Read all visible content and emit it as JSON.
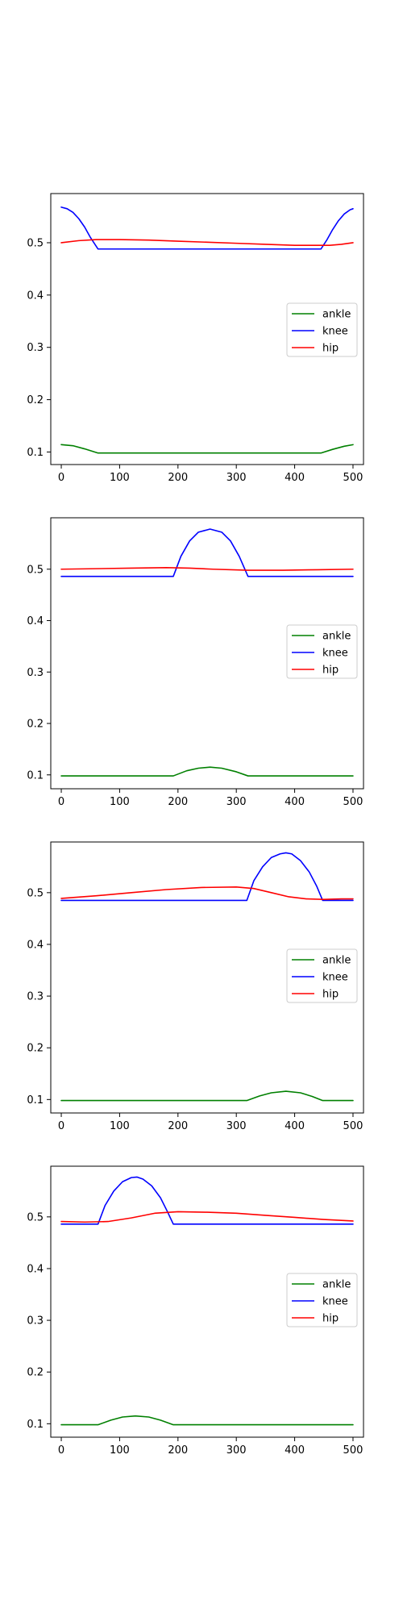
{
  "chart_data": [
    {
      "type": "line",
      "xlim": [
        -18,
        518
      ],
      "ylim": [
        0.076,
        0.594
      ],
      "xticks": [
        0,
        100,
        200,
        300,
        400,
        500
      ],
      "yticks": [
        0.1,
        0.2,
        0.3,
        0.4,
        0.5
      ],
      "grid": false,
      "legend_position": "center-right",
      "series": [
        {
          "name": "ankle",
          "color": "#008000",
          "x": [
            0,
            20,
            40,
            63,
            100,
            200,
            300,
            400,
            445,
            465,
            485,
            500
          ],
          "y": [
            0.114,
            0.112,
            0.106,
            0.098,
            0.098,
            0.098,
            0.098,
            0.098,
            0.098,
            0.105,
            0.111,
            0.114
          ]
        },
        {
          "name": "knee",
          "color": "#0000ff",
          "x": [
            0,
            10,
            20,
            30,
            40,
            50,
            63,
            100,
            200,
            300,
            400,
            445,
            455,
            465,
            475,
            485,
            495,
            500
          ],
          "y": [
            0.568,
            0.565,
            0.558,
            0.546,
            0.53,
            0.51,
            0.488,
            0.488,
            0.488,
            0.488,
            0.488,
            0.488,
            0.505,
            0.525,
            0.542,
            0.555,
            0.563,
            0.565
          ]
        },
        {
          "name": "hip",
          "color": "#ff0000",
          "x": [
            0,
            30,
            60,
            100,
            150,
            200,
            250,
            300,
            350,
            400,
            430,
            460,
            480,
            500
          ],
          "y": [
            0.5,
            0.504,
            0.506,
            0.506,
            0.505,
            0.503,
            0.501,
            0.499,
            0.497,
            0.495,
            0.495,
            0.495,
            0.497,
            0.5
          ]
        }
      ]
    },
    {
      "type": "line",
      "xlim": [
        -18,
        518
      ],
      "ylim": [
        0.073,
        0.6
      ],
      "xticks": [
        0,
        100,
        200,
        300,
        400,
        500
      ],
      "yticks": [
        0.1,
        0.2,
        0.3,
        0.4,
        0.5
      ],
      "grid": false,
      "legend_position": "center-right",
      "series": [
        {
          "name": "ankle",
          "color": "#008000",
          "x": [
            0,
            100,
            192,
            215,
            235,
            255,
            275,
            300,
            320,
            400,
            500
          ],
          "y": [
            0.098,
            0.098,
            0.098,
            0.108,
            0.113,
            0.115,
            0.113,
            0.106,
            0.098,
            0.098,
            0.098
          ]
        },
        {
          "name": "knee",
          "color": "#0000ff",
          "x": [
            0,
            100,
            192,
            205,
            220,
            235,
            255,
            275,
            290,
            305,
            320,
            400,
            500
          ],
          "y": [
            0.486,
            0.486,
            0.486,
            0.525,
            0.555,
            0.572,
            0.578,
            0.572,
            0.555,
            0.525,
            0.486,
            0.486,
            0.486
          ]
        },
        {
          "name": "hip",
          "color": "#ff0000",
          "x": [
            0,
            60,
            120,
            180,
            220,
            260,
            320,
            380,
            440,
            500
          ],
          "y": [
            0.5,
            0.501,
            0.502,
            0.503,
            0.502,
            0.5,
            0.498,
            0.498,
            0.499,
            0.5
          ]
        }
      ]
    },
    {
      "type": "line",
      "xlim": [
        -18,
        518
      ],
      "ylim": [
        0.074,
        0.598
      ],
      "xticks": [
        0,
        100,
        200,
        300,
        400,
        500
      ],
      "yticks": [
        0.1,
        0.2,
        0.3,
        0.4,
        0.5
      ],
      "grid": false,
      "legend_position": "center-right",
      "series": [
        {
          "name": "ankle",
          "color": "#008000",
          "x": [
            0,
            100,
            200,
            318,
            340,
            360,
            385,
            410,
            430,
            448,
            500
          ],
          "y": [
            0.098,
            0.098,
            0.098,
            0.098,
            0.107,
            0.113,
            0.116,
            0.113,
            0.106,
            0.098,
            0.098
          ]
        },
        {
          "name": "knee",
          "color": "#0000ff",
          "x": [
            0,
            100,
            200,
            318,
            330,
            345,
            360,
            375,
            385,
            395,
            410,
            425,
            438,
            448,
            500
          ],
          "y": [
            0.485,
            0.485,
            0.485,
            0.485,
            0.523,
            0.55,
            0.568,
            0.575,
            0.577,
            0.575,
            0.562,
            0.54,
            0.512,
            0.485,
            0.485
          ]
        },
        {
          "name": "hip",
          "color": "#ff0000",
          "x": [
            0,
            60,
            120,
            180,
            240,
            300,
            330,
            360,
            390,
            420,
            450,
            480,
            500
          ],
          "y": [
            0.489,
            0.494,
            0.5,
            0.506,
            0.51,
            0.511,
            0.508,
            0.5,
            0.492,
            0.488,
            0.487,
            0.488,
            0.488
          ]
        }
      ]
    },
    {
      "type": "line",
      "xlim": [
        -18,
        518
      ],
      "ylim": [
        0.074,
        0.598
      ],
      "xticks": [
        0,
        100,
        200,
        300,
        400,
        500
      ],
      "yticks": [
        0.1,
        0.2,
        0.3,
        0.4,
        0.5
      ],
      "grid": false,
      "legend_position": "center-right",
      "series": [
        {
          "name": "ankle",
          "color": "#008000",
          "x": [
            0,
            63,
            85,
            105,
            127,
            150,
            170,
            192,
            300,
            400,
            500
          ],
          "y": [
            0.098,
            0.098,
            0.107,
            0.113,
            0.115,
            0.113,
            0.107,
            0.098,
            0.098,
            0.098,
            0.098
          ]
        },
        {
          "name": "knee",
          "color": "#0000ff",
          "x": [
            0,
            63,
            75,
            90,
            105,
            120,
            130,
            140,
            155,
            170,
            182,
            192,
            300,
            400,
            500
          ],
          "y": [
            0.486,
            0.486,
            0.522,
            0.55,
            0.568,
            0.576,
            0.577,
            0.573,
            0.56,
            0.537,
            0.51,
            0.486,
            0.486,
            0.486,
            0.486
          ]
        },
        {
          "name": "hip",
          "color": "#ff0000",
          "x": [
            0,
            40,
            80,
            120,
            160,
            200,
            250,
            300,
            350,
            400,
            450,
            500
          ],
          "y": [
            0.491,
            0.49,
            0.491,
            0.498,
            0.507,
            0.51,
            0.509,
            0.507,
            0.503,
            0.499,
            0.495,
            0.492
          ]
        }
      ]
    }
  ]
}
